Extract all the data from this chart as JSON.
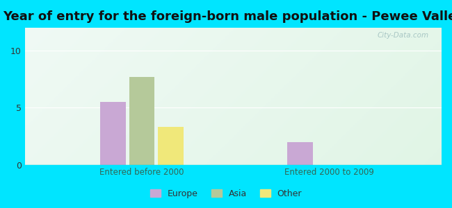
{
  "title": "Year of entry for the foreign-born male population - Pewee Valley",
  "groups": [
    "Entered before 2000",
    "Entered 2000 to 2009"
  ],
  "categories": [
    "Europe",
    "Asia",
    "Other"
  ],
  "values": {
    "Entered before 2000": [
      5.5,
      7.7,
      3.3
    ],
    "Entered 2000 to 2009": [
      2.0,
      0,
      0
    ]
  },
  "bar_colors": {
    "Europe": "#c9a8d4",
    "Asia": "#b5c99a",
    "Other": "#f0e87a"
  },
  "bar_width": 0.07,
  "group_centers": [
    0.28,
    0.73
  ],
  "ylim": [
    0,
    12
  ],
  "yticks": [
    0,
    5,
    10
  ],
  "background_color": "#00e5ff",
  "plot_bg_top": "#cce8d8",
  "plot_bg_bottom": "#e8f8f2",
  "grid_color": "#ffffff",
  "title_fontsize": 13,
  "legend_fontsize": 9,
  "watermark": "City-Data.com"
}
